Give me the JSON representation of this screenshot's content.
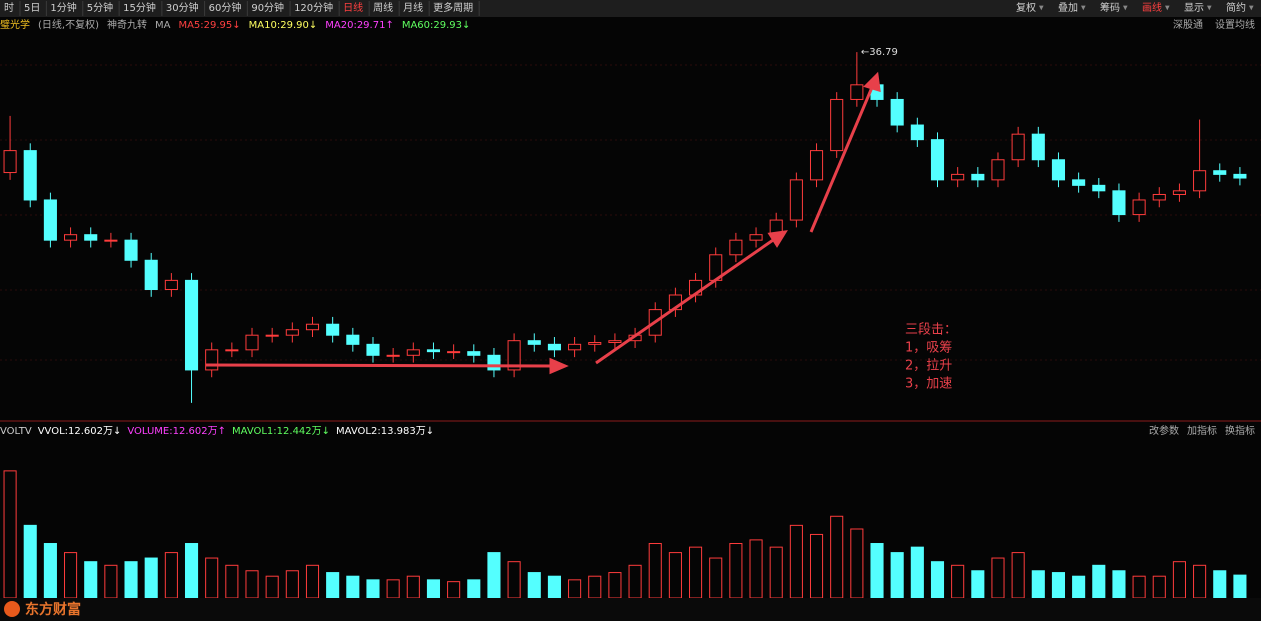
{
  "toolbar": {
    "periods": [
      "时",
      "5日",
      "1分钟",
      "5分钟",
      "15分钟",
      "30分钟",
      "60分钟",
      "90分钟",
      "120分钟",
      "日线",
      "周线",
      "月线",
      "更多周期"
    ],
    "tools": [
      "复权",
      "叠加",
      "筹码",
      "画线",
      "显示",
      "简约"
    ]
  },
  "info_bar": {
    "stock": "璧光学",
    "mode": "(日线,不复权)",
    "indicator": "神奇九转",
    "ma": "MA",
    "ma_labels": [
      "MA5:29.95↓",
      "MA10:29.90↓",
      "MA20:29.71↑",
      "MA60:29.93↓"
    ],
    "right": [
      "深股通",
      "设置均线"
    ]
  },
  "volume_bar": {
    "labels": [
      "VOLTV",
      "VVOL:12.602万↓",
      "VOLUME:12.602万↑",
      "MAVOL1:12.442万↓",
      "MAVOL2:13.983万↓"
    ],
    "right": [
      "改参数",
      "加指标",
      "换指标"
    ]
  },
  "annotation": [
    "三段击：",
    "1，吸筹",
    "2，拉升",
    "3，加速"
  ],
  "logo": "东方财富",
  "chart_data": {
    "type": "candlestick",
    "max_label": "←36.79",
    "up_color": "#ff3c3c",
    "down_color": "#54ffff",
    "ylim": [
      16.66,
      38.0
    ],
    "open": [
      30.2,
      31.4,
      28.7,
      26.5,
      26.8,
      26.5,
      26.5,
      25.4,
      23.8,
      24.3,
      19.4,
      20.5,
      20.5,
      21.3,
      21.3,
      21.6,
      21.9,
      21.3,
      20.8,
      20.2,
      20.2,
      20.5,
      20.4,
      20.4,
      20.2,
      19.4,
      21.0,
      20.8,
      20.5,
      20.8,
      20.9,
      21.0,
      21.3,
      22.7,
      23.5,
      24.3,
      25.7,
      26.5,
      26.8,
      27.6,
      29.8,
      31.4,
      34.2,
      35.0,
      34.2,
      32.8,
      32.0,
      29.8,
      30.1,
      29.8,
      30.9,
      32.3,
      30.9,
      29.8,
      29.5,
      29.2,
      27.9,
      28.7,
      29.0,
      29.2,
      30.3,
      30.1
    ],
    "high": [
      33.3,
      31.8,
      29.1,
      27.2,
      27.2,
      26.9,
      26.9,
      25.8,
      24.7,
      24.7,
      20.9,
      20.9,
      21.7,
      21.7,
      22.0,
      22.3,
      22.3,
      21.7,
      21.2,
      20.6,
      20.9,
      20.9,
      20.8,
      20.8,
      20.6,
      21.4,
      21.4,
      21.2,
      21.2,
      21.3,
      21.4,
      21.7,
      23.1,
      23.9,
      24.7,
      26.1,
      26.9,
      27.2,
      28.0,
      30.2,
      31.8,
      34.6,
      36.79,
      35.4,
      34.6,
      33.2,
      32.4,
      30.5,
      30.5,
      31.3,
      32.7,
      32.7,
      31.3,
      30.2,
      29.9,
      29.6,
      29.1,
      29.4,
      29.6,
      33.1,
      30.7,
      30.5
    ],
    "low": [
      29.8,
      28.3,
      26.1,
      26.1,
      26.1,
      26.1,
      25.0,
      23.4,
      23.4,
      17.6,
      19.0,
      20.1,
      20.1,
      20.9,
      20.9,
      21.2,
      20.9,
      20.4,
      19.8,
      19.8,
      19.8,
      20.0,
      20.0,
      19.8,
      19.0,
      19.0,
      20.4,
      20.1,
      20.1,
      20.4,
      20.5,
      20.6,
      20.9,
      22.3,
      23.1,
      23.9,
      25.3,
      26.1,
      26.4,
      27.2,
      29.4,
      31.0,
      33.8,
      33.8,
      32.4,
      31.6,
      29.4,
      29.4,
      29.4,
      29.4,
      30.5,
      30.5,
      29.4,
      29.1,
      28.8,
      27.5,
      27.5,
      28.3,
      28.6,
      28.8,
      29.7,
      29.5
    ],
    "close": [
      31.4,
      28.7,
      26.5,
      26.8,
      26.5,
      26.5,
      25.4,
      23.8,
      24.3,
      19.4,
      20.5,
      20.5,
      21.3,
      21.3,
      21.6,
      21.9,
      21.3,
      20.8,
      20.2,
      20.2,
      20.5,
      20.4,
      20.4,
      20.2,
      19.4,
      21.0,
      20.8,
      20.5,
      20.8,
      20.9,
      21.0,
      21.3,
      22.7,
      23.5,
      24.3,
      25.7,
      26.5,
      26.8,
      27.6,
      29.8,
      31.4,
      34.2,
      35.0,
      34.2,
      32.8,
      32.0,
      29.8,
      30.1,
      29.8,
      30.9,
      32.3,
      30.9,
      29.8,
      29.5,
      29.2,
      27.9,
      28.7,
      29.0,
      29.2,
      30.3,
      30.1,
      29.9
    ],
    "volume": [
      70,
      40,
      30,
      25,
      20,
      18,
      20,
      22,
      25,
      30,
      22,
      18,
      15,
      12,
      15,
      18,
      14,
      12,
      10,
      10,
      12,
      10,
      9,
      10,
      25,
      20,
      14,
      12,
      10,
      12,
      14,
      18,
      30,
      25,
      28,
      22,
      30,
      32,
      28,
      40,
      35,
      45,
      38,
      30,
      25,
      28,
      20,
      18,
      15,
      22,
      25,
      15,
      14,
      12,
      18,
      15,
      12,
      12,
      20,
      18,
      15,
      12.6
    ],
    "volume_ylim": [
      0,
      87
    ]
  }
}
